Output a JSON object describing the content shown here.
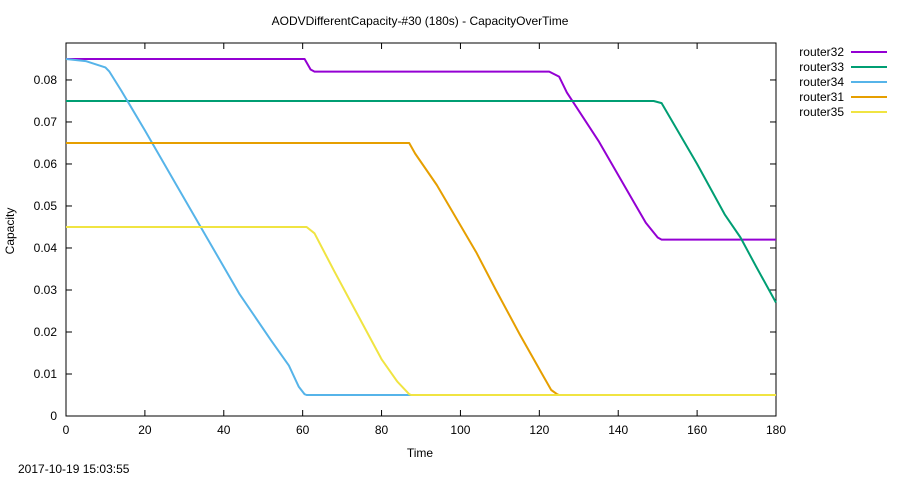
{
  "chart_data": {
    "type": "line",
    "title": "AODVDifferentCapacity-#30 (180s) - CapacityOverTime",
    "xlabel": "Time",
    "ylabel": "Capacity",
    "xlim": [
      0,
      180
    ],
    "ylim": [
      0,
      0.0888
    ],
    "xticks": [
      0,
      20,
      40,
      60,
      80,
      100,
      120,
      140,
      160,
      180
    ],
    "xtick_labels": [
      "0",
      "20",
      "40",
      "60",
      "80",
      "100",
      "120",
      "140",
      "160",
      "180"
    ],
    "yticks": [
      0,
      0.01,
      0.02,
      0.03,
      0.04,
      0.05,
      0.06,
      0.07,
      0.08
    ],
    "ytick_labels": [
      "0",
      "0.01",
      "0.02",
      "0.03",
      "0.04",
      "0.05",
      "0.06",
      "0.07",
      "0.08"
    ],
    "grid": false,
    "legend_position": "outside-right-top",
    "series": [
      {
        "name": "router32",
        "color": "#9400d3",
        "points": [
          [
            0,
            0.085
          ],
          [
            60.5,
            0.085
          ],
          [
            62,
            0.0825
          ],
          [
            63,
            0.082
          ],
          [
            122.5,
            0.082
          ],
          [
            125,
            0.0808
          ],
          [
            127,
            0.077
          ],
          [
            135,
            0.0655
          ],
          [
            147,
            0.046
          ],
          [
            150,
            0.0425
          ],
          [
            151,
            0.042
          ],
          [
            180,
            0.042
          ]
        ]
      },
      {
        "name": "router33",
        "color": "#009e73",
        "points": [
          [
            0,
            0.075
          ],
          [
            149,
            0.075
          ],
          [
            151,
            0.0745
          ],
          [
            160,
            0.06
          ],
          [
            167,
            0.048
          ],
          [
            171,
            0.0425
          ],
          [
            175,
            0.0355
          ],
          [
            180,
            0.027
          ]
        ]
      },
      {
        "name": "router34",
        "color": "#56b4e9",
        "points": [
          [
            0,
            0.085
          ],
          [
            5,
            0.0845
          ],
          [
            10,
            0.083
          ],
          [
            11,
            0.082
          ],
          [
            14,
            0.0775
          ],
          [
            20,
            0.068
          ],
          [
            28,
            0.055
          ],
          [
            36,
            0.042
          ],
          [
            44,
            0.029
          ],
          [
            52,
            0.018
          ],
          [
            56.5,
            0.012
          ],
          [
            59,
            0.007
          ],
          [
            60.5,
            0.0052
          ],
          [
            61,
            0.005
          ],
          [
            180,
            0.005
          ]
        ]
      },
      {
        "name": "router31",
        "color": "#e69f00",
        "points": [
          [
            0,
            0.065
          ],
          [
            87,
            0.065
          ],
          [
            88.5,
            0.0625
          ],
          [
            94,
            0.055
          ],
          [
            99,
            0.047
          ],
          [
            104,
            0.039
          ],
          [
            109,
            0.03
          ],
          [
            115,
            0.0195
          ],
          [
            121,
            0.0095
          ],
          [
            123,
            0.0062
          ],
          [
            124.5,
            0.0052
          ],
          [
            125,
            0.005
          ],
          [
            180,
            0.005
          ]
        ]
      },
      {
        "name": "router35",
        "color": "#f0e442",
        "points": [
          [
            0,
            0.045
          ],
          [
            61,
            0.045
          ],
          [
            63,
            0.0435
          ],
          [
            68,
            0.0345
          ],
          [
            72,
            0.0275
          ],
          [
            76,
            0.0205
          ],
          [
            80,
            0.0135
          ],
          [
            84,
            0.0082
          ],
          [
            87,
            0.0052
          ],
          [
            87.5,
            0.005
          ],
          [
            180,
            0.005
          ]
        ]
      }
    ]
  },
  "footer": {
    "timestamp": "2017-10-19 15:03:55"
  }
}
